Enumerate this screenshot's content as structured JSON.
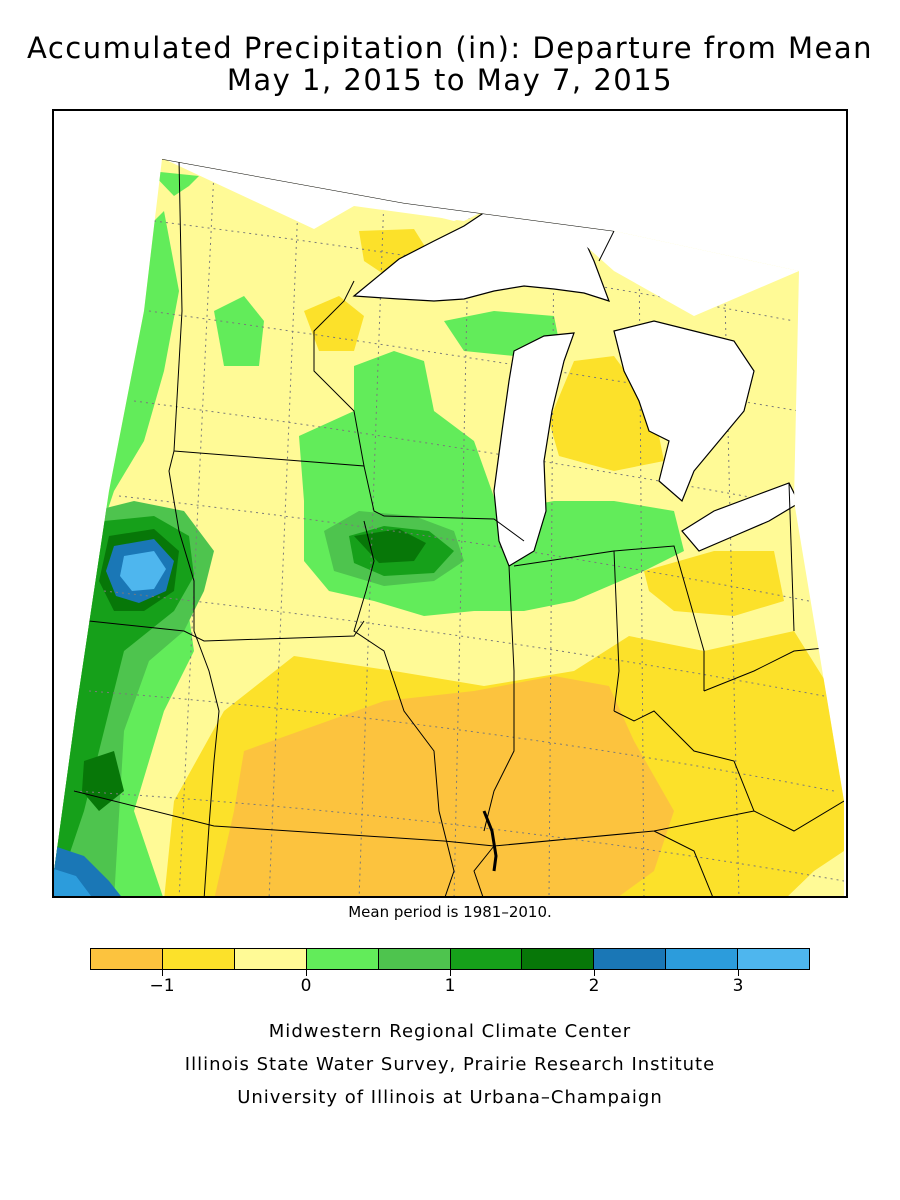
{
  "title": {
    "line1": "Accumulated Precipitation (in): Departure from Mean",
    "line2": "May 1, 2015 to May 7, 2015"
  },
  "note": "Mean period is 1981–2010.",
  "legend": {
    "colors": [
      "#fcc33e",
      "#fce12a",
      "#fffa96",
      "#62ec5a",
      "#4ec44e",
      "#16a01a",
      "#077708",
      "#1a77b6",
      "#2c9cdc",
      "#4eb6ee"
    ],
    "tick_labels": [
      "−1",
      "0",
      "1",
      "2",
      "3"
    ],
    "tick_values": [
      -1,
      0,
      1,
      2,
      3
    ],
    "min": -1.5,
    "max": 3.5
  },
  "credits": [
    "Midwestern Regional Climate Center",
    "Illinois State Water Survey, Prairie Research Institute",
    "University of Illinois at Urbana–Champaign"
  ],
  "map": {
    "region": "Upper Midwest and Great Lakes",
    "colors": {
      "water": "#ffffff",
      "boundary": "#000000",
      "grid": "#7a7a7a"
    }
  }
}
